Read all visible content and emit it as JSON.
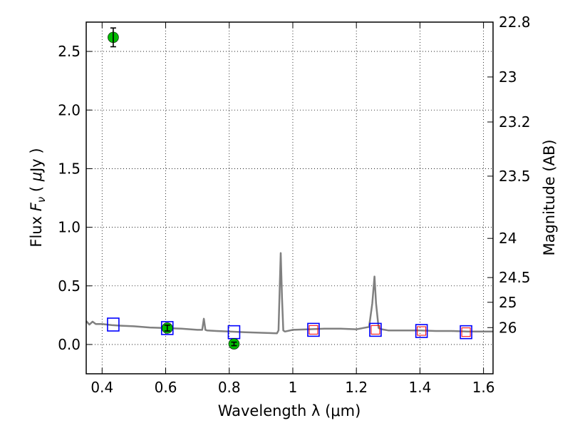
{
  "chart_data": {
    "type": "scatter",
    "xlabel": "Wavelength  λ (μm)",
    "ylabel": "Flux  F_ν  ( μJy )",
    "y2label": "Magnitude (AB)",
    "xlim": [
      0.35,
      1.63
    ],
    "ylim": [
      -0.25,
      2.75
    ],
    "x_ticks": [
      0.4,
      0.6,
      0.8,
      1.0,
      1.2,
      1.4,
      1.6
    ],
    "x_tick_labels": [
      "0.4",
      "0.6",
      "0.8",
      "1",
      "1.2",
      "1.4",
      "1.6"
    ],
    "y_ticks": [
      0.0,
      0.5,
      1.0,
      1.5,
      2.0,
      2.5
    ],
    "y_tick_labels": [
      "0.0",
      "0.5",
      "1.0",
      "1.5",
      "2.0",
      "2.5"
    ],
    "y2_tick_labels": [
      "22.8",
      "23",
      "23.2",
      "23.5",
      "24",
      "24.5",
      "25",
      "26"
    ],
    "y2_tick_flux": [
      2.75,
      2.282,
      1.898,
      1.436,
      0.905,
      0.571,
      0.36,
      0.144
    ],
    "grid": true,
    "colors": {
      "template": "#808080",
      "observed": "#00bb00",
      "model_box": "#0000ff",
      "model_box_inner": "#ff0000",
      "errorbar": "#000000"
    },
    "series": [
      {
        "kind": "template_spectrum",
        "x": [
          0.35,
          0.36,
          0.37,
          0.38,
          0.4,
          0.43,
          0.46,
          0.5,
          0.55,
          0.6,
          0.65,
          0.7,
          0.715,
          0.72,
          0.725,
          0.73,
          0.76,
          0.8,
          0.85,
          0.9,
          0.95,
          0.955,
          0.958,
          0.962,
          0.966,
          0.97,
          0.975,
          1.0,
          1.05,
          1.1,
          1.15,
          1.2,
          1.24,
          1.25,
          1.257,
          1.262,
          1.27,
          1.28,
          1.3,
          1.35,
          1.4,
          1.45,
          1.5,
          1.55,
          1.6,
          1.63
        ],
        "y": [
          0.2,
          0.17,
          0.195,
          0.175,
          0.175,
          0.165,
          0.16,
          0.155,
          0.145,
          0.14,
          0.135,
          0.125,
          0.125,
          0.22,
          0.125,
          0.12,
          0.115,
          0.11,
          0.105,
          0.1,
          0.095,
          0.12,
          0.4,
          0.78,
          0.4,
          0.12,
          0.11,
          0.125,
          0.13,
          0.135,
          0.135,
          0.13,
          0.15,
          0.35,
          0.58,
          0.35,
          0.14,
          0.13,
          0.12,
          0.12,
          0.12,
          0.115,
          0.115,
          0.11,
          0.11,
          0.11
        ]
      },
      {
        "kind": "model_boxes",
        "x": [
          0.435,
          0.605,
          0.815,
          1.065,
          1.26,
          1.405,
          1.545
        ],
        "y": [
          0.17,
          0.14,
          0.105,
          0.125,
          0.125,
          0.115,
          0.105
        ],
        "inner_box": [
          false,
          false,
          false,
          true,
          true,
          true,
          true
        ]
      },
      {
        "kind": "observed_points",
        "x": [
          0.435,
          0.605,
          0.815
        ],
        "y": [
          2.62,
          0.14,
          0.005
        ],
        "yerr": [
          0.08,
          0.025,
          0.015
        ]
      }
    ]
  }
}
